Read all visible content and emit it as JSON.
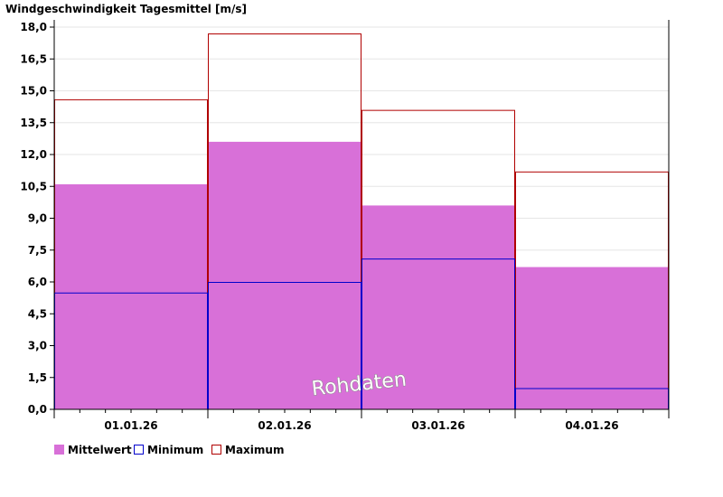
{
  "chart_data": {
    "type": "bar",
    "title": "Windgeschwindigkeit Tagesmittel [m/s]",
    "watermark": "Rohdaten",
    "categories": [
      "01.01.26",
      "02.01.26",
      "03.01.26",
      "04.01.26"
    ],
    "ylim": [
      0,
      18
    ],
    "yticks": [
      "0,0",
      "1,5",
      "3,0",
      "4,5",
      "6,0",
      "7,5",
      "9,0",
      "10,5",
      "12,0",
      "13,5",
      "15,0",
      "16,5",
      "18,0"
    ],
    "grid": true,
    "series": [
      {
        "name": "Mittelwert",
        "color": "#d870d8",
        "values": [
          10.6,
          12.6,
          9.6,
          6.7
        ]
      },
      {
        "name": "Minimum",
        "color": "#0000cc",
        "values": [
          5.5,
          6.0,
          7.1,
          1.0
        ]
      },
      {
        "name": "Maximum",
        "color": "#b00000",
        "values": [
          14.6,
          17.7,
          14.1,
          11.2
        ]
      }
    ]
  }
}
